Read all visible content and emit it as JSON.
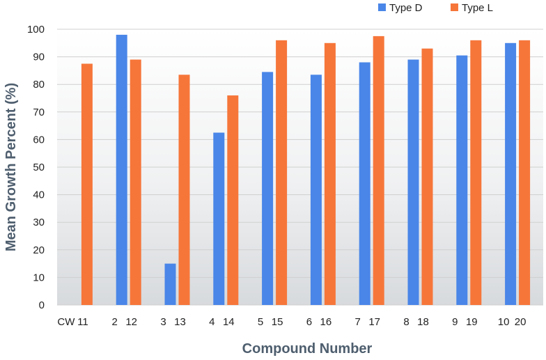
{
  "chart_data": {
    "type": "bar",
    "xlabel": "Compound Number",
    "ylabel": "Mean Growth Percent (%)",
    "ylim": [
      0,
      100
    ],
    "yticks": [
      0,
      10,
      20,
      30,
      40,
      50,
      60,
      70,
      80,
      90,
      100
    ],
    "grid": true,
    "legend_position": "top-right",
    "series": [
      {
        "name": "Type D",
        "color": "#4a86e8",
        "labels": [
          "CW",
          "2",
          "3",
          "4",
          "5",
          "6",
          "7",
          "8",
          "9",
          "10"
        ],
        "values": [
          null,
          98,
          15,
          62.5,
          84.5,
          83.5,
          88,
          89,
          90.5,
          95
        ]
      },
      {
        "name": "Type L",
        "color": "#f6763a",
        "labels": [
          "11",
          "12",
          "13",
          "14",
          "15",
          "16",
          "17",
          "18",
          "19",
          "20"
        ],
        "values": [
          87.5,
          89,
          83.5,
          76,
          96,
          95,
          97.5,
          93,
          96,
          96
        ]
      }
    ]
  }
}
